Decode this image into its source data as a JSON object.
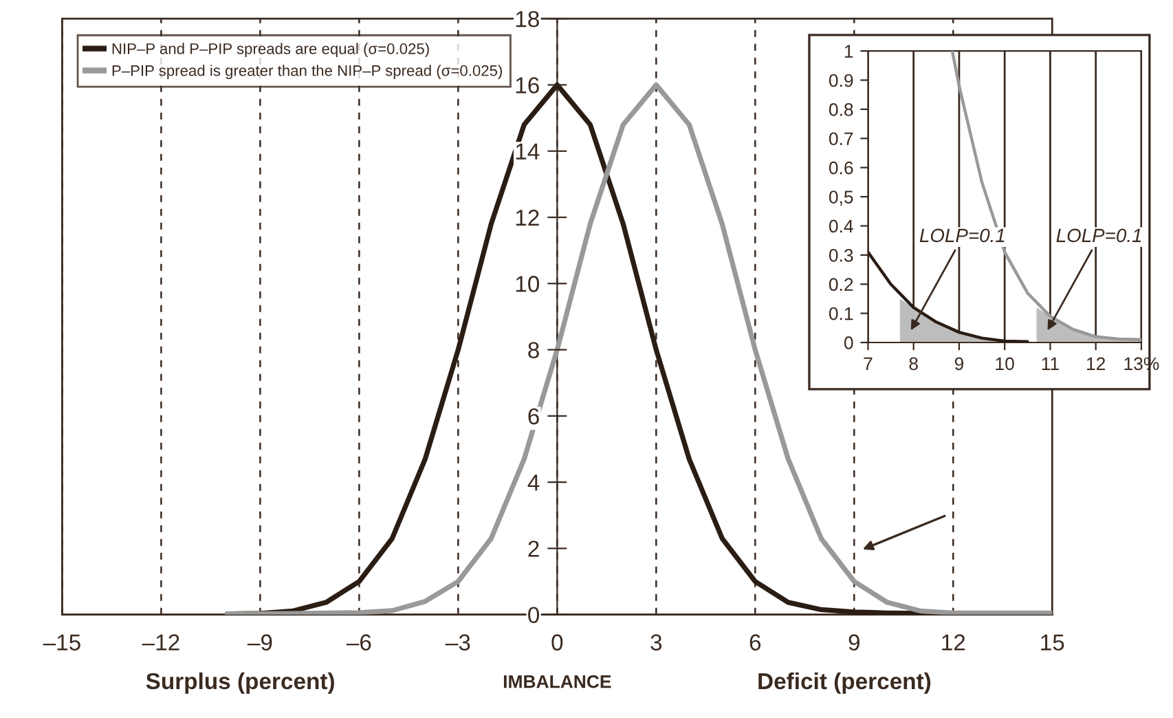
{
  "chart_data": [
    {
      "type": "line",
      "xlabel": "IMBALANCE",
      "annotations": [
        "Surplus (percent)",
        "Deficit (percent)"
      ],
      "xlim": [
        -15,
        15
      ],
      "ylim": [
        0,
        18
      ],
      "xticks": [
        {
          "value": -15,
          "label": "–15"
        },
        {
          "value": -12,
          "label": "–12"
        },
        {
          "value": -9,
          "label": "–9"
        },
        {
          "value": -6,
          "label": "–6"
        },
        {
          "value": -3,
          "label": "–3"
        },
        0,
        3,
        6,
        9,
        12,
        15
      ],
      "yticks": [
        0,
        2,
        4,
        6,
        8,
        10,
        12,
        14,
        16,
        18
      ],
      "grid": "x",
      "legend": "top left",
      "series": [
        {
          "name": "NIP–P and P–PIP spreads are equal (σ=0.025)",
          "color": "#2b1d14",
          "x": [
            -10,
            -9,
            -8,
            -7,
            -6,
            -5,
            -4,
            -3,
            -2,
            -1,
            0,
            1,
            2,
            3,
            4,
            5,
            6,
            7,
            8,
            9,
            10,
            12,
            15
          ],
          "values": [
            0.02,
            0.04,
            0.11,
            0.37,
            1.0,
            2.3,
            4.7,
            8.0,
            11.8,
            14.8,
            16,
            14.8,
            11.8,
            8.0,
            4.7,
            2.3,
            1.0,
            0.37,
            0.15,
            0.08,
            0.05,
            0.03,
            0.03
          ]
        },
        {
          "name": "P–PIP spread is greater than the NIP–P spread (σ=0.025)",
          "color": "#999999",
          "x": [
            -10,
            -8,
            -6,
            -5,
            -4,
            -3,
            -2,
            -1,
            0,
            1,
            2,
            3,
            4,
            5,
            6,
            7,
            8,
            9,
            10,
            11,
            12,
            13,
            15
          ],
          "values": [
            0.02,
            0.03,
            0.06,
            0.12,
            0.4,
            1.0,
            2.3,
            4.7,
            8.0,
            11.8,
            14.8,
            16,
            14.8,
            11.8,
            8.0,
            4.7,
            2.3,
            1.0,
            0.37,
            0.11,
            0.05,
            0.05,
            0.05
          ]
        }
      ]
    },
    {
      "type": "line",
      "annotations": [
        "LOLP=0.1",
        "LOLP=0.1"
      ],
      "xlim": [
        7,
        13
      ],
      "ylim": [
        0,
        1
      ],
      "xticks": [
        7,
        8,
        9,
        10,
        11,
        12,
        {
          "value": 13,
          "label": "13%"
        }
      ],
      "yticks": [
        0,
        0.1,
        0.2,
        0.3,
        0.4,
        {
          "value": 0.5,
          "label": "0,5"
        },
        0.6,
        0.7,
        0.8,
        0.9,
        1
      ],
      "grid": "x",
      "series": [
        {
          "type": "area",
          "color": "#bdbdbd",
          "x": [
            7.7,
            8,
            8.5,
            9,
            9.5,
            10,
            10.5
          ],
          "values": [
            0.15,
            0.12,
            0.07,
            0.035,
            0.015,
            0.005,
            0.003
          ]
        },
        {
          "type": "area",
          "color": "#bdbdbd",
          "x": [
            10.7,
            11,
            11.5,
            12,
            12.5,
            13
          ],
          "values": [
            0.12,
            0.09,
            0.045,
            0.02,
            0.012,
            0.01
          ]
        },
        {
          "color": "#2b1d14",
          "x": [
            7,
            7.5,
            8,
            8.5,
            9,
            9.5,
            10,
            10.5
          ],
          "values": [
            0.31,
            0.2,
            0.12,
            0.07,
            0.035,
            0.015,
            0.005,
            0.003
          ]
        },
        {
          "color": "#999999",
          "x": [
            8.85,
            9,
            9.5,
            10,
            10.5,
            11,
            11.5,
            12,
            12.5,
            13
          ],
          "values": [
            1.0,
            0.88,
            0.55,
            0.31,
            0.17,
            0.09,
            0.045,
            0.02,
            0.012,
            0.01
          ]
        }
      ]
    }
  ]
}
